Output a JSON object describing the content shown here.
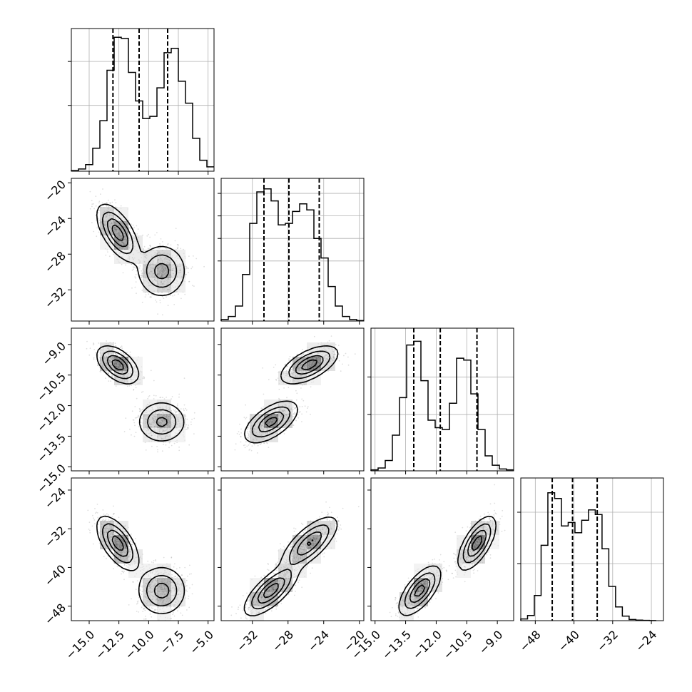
{
  "chart_data": {
    "type": "corner",
    "title": "",
    "params": [
      {
        "range": [
          -16.5,
          -4.5
        ],
        "ticks": [
          -15.0,
          -12.5,
          -10.0,
          -7.5,
          -5.0
        ],
        "tick_labels": [
          "−15.0",
          "−12.5",
          "−10.0",
          "−7.5",
          "−5.0"
        ],
        "quantiles": [
          -13.0,
          -10.8,
          -8.4
        ]
      },
      {
        "range": [
          -35.5,
          -19.5
        ],
        "ticks": [
          -32,
          -28,
          -24,
          -20
        ],
        "tick_labels": [
          "−32",
          "−28",
          "−24",
          "−20"
        ],
        "quantiles": [
          -30.7,
          -27.9,
          -24.5
        ]
      },
      {
        "range": [
          -15.2,
          -8.2
        ],
        "ticks": [
          -15.0,
          -13.5,
          -12.0,
          -10.5,
          -9.0
        ],
        "tick_labels": [
          "−15.0",
          "−13.5",
          "−12.0",
          "−10.5",
          "−9.0"
        ],
        "quantiles": [
          -13.1,
          -11.8,
          -10.0
        ]
      },
      {
        "range": [
          -51,
          -21.5
        ],
        "ticks": [
          -48,
          -40,
          -32,
          -24
        ],
        "tick_labels": [
          "−48",
          "−40",
          "−32",
          "−24"
        ],
        "quantiles": [
          -44.5,
          -40.3,
          -35.2
        ]
      }
    ],
    "histograms": [
      {
        "edges_from": -16.5,
        "bin_width": 0.6,
        "counts": [
          0.3,
          1.0,
          3.0,
          10.5,
          23.0,
          46.0,
          61.0,
          60.5,
          45.0,
          32.0,
          24.0,
          25.0,
          38.0,
          54.0,
          56.0,
          41.0,
          31.0,
          15.0,
          5.0,
          2.0
        ],
        "ymax": 65
      },
      {
        "edges_from": -35.5,
        "bin_width": 0.8,
        "counts": [
          1.0,
          3.0,
          10.0,
          31.0,
          65.0,
          86.0,
          88.0,
          80.0,
          64.0,
          65.0,
          73.0,
          78.0,
          74.0,
          55.0,
          42.0,
          23.0,
          10.0,
          3.0,
          1.0,
          0.3
        ],
        "ymax": 95
      },
      {
        "edges_from": -15.2,
        "bin_width": 0.35,
        "counts": [
          0.5,
          1.5,
          5.5,
          19.0,
          39.0,
          67.0,
          69.0,
          48.0,
          27.0,
          23.0,
          22.0,
          36.0,
          60.0,
          59.0,
          41.0,
          22.0,
          8.0,
          3.0,
          1.0,
          0.5
        ],
        "ymax": 76
      },
      {
        "edges_from": -51,
        "bin_width": 1.4,
        "counts": [
          1.5,
          4.5,
          22.0,
          66.0,
          112.0,
          107.0,
          83.0,
          86.0,
          77.0,
          88.0,
          97.0,
          93.0,
          63.0,
          30.0,
          12.0,
          4.0,
          1.0,
          0.5,
          0.2,
          0.1
        ],
        "ymax": 125
      }
    ],
    "histogram_gridlines": [
      [
        30,
        50
      ],
      [
        40,
        55,
        70,
        85
      ],
      [
        30,
        50
      ],
      [
        50,
        95
      ]
    ],
    "modes": [
      {
        "center": [
          -12.6,
          -25.6,
          -10.0,
          -35.0
        ],
        "sd": [
          0.85,
          1.55,
          0.45,
          2.7
        ],
        "corr": {
          "0-1": -0.62,
          "0-2": -0.5,
          "0-3": -0.62,
          "1-2": 0.6,
          "1-3": 0.72,
          "2-3": 0.66
        }
      },
      {
        "center": [
          -8.9,
          -29.9,
          -12.8,
          -44.8
        ],
        "sd": [
          1.0,
          1.45,
          0.5,
          2.5
        ],
        "corr": {
          "0-1": 0.0,
          "0-2": 0.0,
          "0-3": 0.0,
          "1-2": 0.6,
          "1-3": 0.72,
          "2-3": 0.66
        }
      }
    ],
    "xlabel": "",
    "ylabel": ""
  }
}
